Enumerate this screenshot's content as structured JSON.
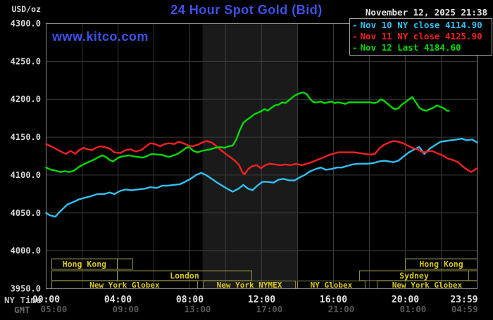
{
  "header": {
    "units_label": "USD/oz",
    "title": "24 Hour Spot Gold (Bid)",
    "datetime": "November 12, 2025 21:38",
    "watermark": "www.kitco.com",
    "legend": [
      {
        "label": "Nov 10 NY close 4114.90",
        "color": "#2fc0f2"
      },
      {
        "label": "Nov 11 NY close 4125.90",
        "color": "#f52020"
      },
      {
        "label": "Nov 12 Last 4184.60",
        "color": "#00dc00"
      }
    ]
  },
  "axes": {
    "ny_time_label": "NY Time",
    "gmt_label": "GMT",
    "ny_ticks": [
      "00:00",
      "04:00",
      "08:00",
      "12:00",
      "16:00",
      "20:00",
      "23:59"
    ],
    "gmt_ticks": [
      "05:00",
      "09:00",
      "13:00",
      "17:00",
      "21:00",
      "01:00",
      "04:59"
    ],
    "y_tick_values": [
      3950,
      4000,
      4050,
      4100,
      4150,
      4200,
      4250,
      4300
    ]
  },
  "chart_data": {
    "type": "line",
    "title": "24 Hour Spot Gold (Bid)",
    "x_unit": "hours, NY time",
    "xlim": [
      0,
      24
    ],
    "ylim": [
      3950,
      4300
    ],
    "grid": {
      "x_step_hours": 2,
      "y_step": 50,
      "color": "#3a3a3a"
    },
    "nymex_band": {
      "t0": 8.71,
      "t1": 14.0,
      "color": "#1a1a1a"
    },
    "series": [
      {
        "name": "Nov 10 NY close",
        "close_value": 4114.9,
        "color": "#2fc0f2",
        "points": [
          [
            0,
            4050
          ],
          [
            0.2,
            4047
          ],
          [
            0.51,
            4045
          ],
          [
            0.78,
            4052
          ],
          [
            1.18,
            4061
          ],
          [
            1.57,
            4065
          ],
          [
            1.84,
            4068
          ],
          [
            2.16,
            4070
          ],
          [
            2.47,
            4072
          ],
          [
            2.86,
            4075
          ],
          [
            3.25,
            4075
          ],
          [
            3.53,
            4077
          ],
          [
            3.8,
            4075
          ],
          [
            4.12,
            4079
          ],
          [
            4.43,
            4081
          ],
          [
            4.75,
            4080
          ],
          [
            5.1,
            4081
          ],
          [
            5.49,
            4082
          ],
          [
            5.8,
            4084
          ],
          [
            6.16,
            4083
          ],
          [
            6.47,
            4086
          ],
          [
            6.78,
            4086
          ],
          [
            7.1,
            4087
          ],
          [
            7.45,
            4088
          ],
          [
            7.73,
            4091
          ],
          [
            8.04,
            4095
          ],
          [
            8.35,
            4100
          ],
          [
            8.63,
            4103
          ],
          [
            8.9,
            4100
          ],
          [
            9.22,
            4095
          ],
          [
            9.53,
            4090
          ],
          [
            9.8,
            4086
          ],
          [
            10.08,
            4082
          ],
          [
            10.39,
            4078
          ],
          [
            10.71,
            4082
          ],
          [
            10.98,
            4087
          ],
          [
            11.25,
            4082
          ],
          [
            11.49,
            4080
          ],
          [
            11.76,
            4086
          ],
          [
            12.04,
            4091
          ],
          [
            12.35,
            4091
          ],
          [
            12.67,
            4090
          ],
          [
            12.94,
            4094
          ],
          [
            13.22,
            4095
          ],
          [
            13.53,
            4093
          ],
          [
            13.84,
            4093
          ],
          [
            14.12,
            4097
          ],
          [
            14.39,
            4100
          ],
          [
            14.71,
            4105
          ],
          [
            15.02,
            4108
          ],
          [
            15.29,
            4110
          ],
          [
            15.57,
            4107
          ],
          [
            15.88,
            4108
          ],
          [
            16.2,
            4110
          ],
          [
            16.47,
            4110
          ],
          [
            16.75,
            4112
          ],
          [
            17.06,
            4114
          ],
          [
            17.37,
            4115
          ],
          [
            17.65,
            4115
          ],
          [
            17.92,
            4115
          ],
          [
            18.24,
            4116
          ],
          [
            18.55,
            4118
          ],
          [
            18.82,
            4119
          ],
          [
            19.1,
            4118
          ],
          [
            19.33,
            4117
          ],
          [
            19.61,
            4119
          ],
          [
            19.88,
            4124
          ],
          [
            20.2,
            4130
          ],
          [
            20.51,
            4134
          ],
          [
            20.78,
            4137
          ],
          [
            21.06,
            4128
          ],
          [
            21.37,
            4135
          ],
          [
            21.69,
            4140
          ],
          [
            21.96,
            4144
          ],
          [
            22.24,
            4145
          ],
          [
            22.55,
            4146
          ],
          [
            22.86,
            4147
          ],
          [
            23.14,
            4148
          ],
          [
            23.41,
            4146
          ],
          [
            23.73,
            4147
          ],
          [
            24,
            4143
          ]
        ]
      },
      {
        "name": "Nov 11 NY close",
        "close_value": 4125.9,
        "color": "#f52020",
        "points": [
          [
            0,
            4141
          ],
          [
            0.27,
            4138
          ],
          [
            0.59,
            4134
          ],
          [
            0.9,
            4130
          ],
          [
            1.1,
            4128
          ],
          [
            1.37,
            4132
          ],
          [
            1.61,
            4128
          ],
          [
            1.84,
            4133
          ],
          [
            2.08,
            4136
          ],
          [
            2.31,
            4134
          ],
          [
            2.55,
            4133
          ],
          [
            2.78,
            4136
          ],
          [
            3.02,
            4138
          ],
          [
            3.25,
            4137
          ],
          [
            3.53,
            4135
          ],
          [
            3.8,
            4130
          ],
          [
            4.12,
            4129
          ],
          [
            4.43,
            4133
          ],
          [
            4.71,
            4134
          ],
          [
            4.98,
            4131
          ],
          [
            5.29,
            4133
          ],
          [
            5.57,
            4138
          ],
          [
            5.8,
            4142
          ],
          [
            6.08,
            4141
          ],
          [
            6.35,
            4138
          ],
          [
            6.59,
            4141
          ],
          [
            6.86,
            4142
          ],
          [
            7.14,
            4141
          ],
          [
            7.37,
            4144
          ],
          [
            7.65,
            4142
          ],
          [
            7.92,
            4139
          ],
          [
            8.16,
            4138
          ],
          [
            8.43,
            4140
          ],
          [
            8.71,
            4143
          ],
          [
            8.94,
            4145
          ],
          [
            9.22,
            4143
          ],
          [
            9.49,
            4138
          ],
          [
            9.73,
            4133
          ],
          [
            10,
            4128
          ],
          [
            10.24,
            4124
          ],
          [
            10.51,
            4119
          ],
          [
            10.75,
            4113
          ],
          [
            10.94,
            4103
          ],
          [
            11.06,
            4101
          ],
          [
            11.25,
            4108
          ],
          [
            11.49,
            4112
          ],
          [
            11.73,
            4113
          ],
          [
            11.96,
            4109
          ],
          [
            12.2,
            4113
          ],
          [
            12.43,
            4115
          ],
          [
            12.75,
            4114
          ],
          [
            13.06,
            4113
          ],
          [
            13.33,
            4114
          ],
          [
            13.61,
            4113
          ],
          [
            13.92,
            4115
          ],
          [
            14.24,
            4113
          ],
          [
            14.51,
            4115
          ],
          [
            14.78,
            4117
          ],
          [
            15.1,
            4120
          ],
          [
            15.41,
            4123
          ],
          [
            15.69,
            4126
          ],
          [
            15.96,
            4128
          ],
          [
            16.27,
            4130
          ],
          [
            16.59,
            4130
          ],
          [
            16.86,
            4130
          ],
          [
            17.14,
            4130
          ],
          [
            17.45,
            4129
          ],
          [
            17.76,
            4128
          ],
          [
            18.04,
            4127
          ],
          [
            18.31,
            4128
          ],
          [
            18.55,
            4135
          ],
          [
            18.82,
            4140
          ],
          [
            19.1,
            4143
          ],
          [
            19.33,
            4145
          ],
          [
            19.61,
            4144
          ],
          [
            19.88,
            4142
          ],
          [
            20.12,
            4139
          ],
          [
            20.39,
            4136
          ],
          [
            20.67,
            4134
          ],
          [
            20.98,
            4130
          ],
          [
            21.25,
            4131
          ],
          [
            21.49,
            4132
          ],
          [
            21.76,
            4129
          ],
          [
            22.08,
            4126
          ],
          [
            22.35,
            4122
          ],
          [
            22.63,
            4120
          ],
          [
            22.94,
            4117
          ],
          [
            23.22,
            4111
          ],
          [
            23.45,
            4107
          ],
          [
            23.65,
            4104
          ],
          [
            23.8,
            4106
          ],
          [
            24,
            4109
          ]
        ]
      },
      {
        "name": "Nov 12 Last",
        "close_value": 4184.6,
        "color": "#00dc00",
        "points": [
          [
            0,
            4110
          ],
          [
            0.27,
            4107
          ],
          [
            0.51,
            4106
          ],
          [
            0.78,
            4104
          ],
          [
            1.06,
            4105
          ],
          [
            1.29,
            4104
          ],
          [
            1.57,
            4106
          ],
          [
            1.84,
            4111
          ],
          [
            2.08,
            4114
          ],
          [
            2.35,
            4117
          ],
          [
            2.63,
            4120
          ],
          [
            2.86,
            4123
          ],
          [
            3.14,
            4126
          ],
          [
            3.33,
            4124
          ],
          [
            3.53,
            4120
          ],
          [
            3.73,
            4118
          ],
          [
            3.96,
            4122
          ],
          [
            4.12,
            4124
          ],
          [
            4.35,
            4125
          ],
          [
            4.59,
            4126
          ],
          [
            4.82,
            4125
          ],
          [
            5.1,
            4124
          ],
          [
            5.37,
            4123
          ],
          [
            5.61,
            4125
          ],
          [
            5.88,
            4128
          ],
          [
            6.16,
            4127
          ],
          [
            6.39,
            4127
          ],
          [
            6.67,
            4125
          ],
          [
            6.86,
            4124
          ],
          [
            7.1,
            4126
          ],
          [
            7.33,
            4128
          ],
          [
            7.57,
            4132
          ],
          [
            7.8,
            4136
          ],
          [
            7.96,
            4137
          ],
          [
            8.2,
            4132
          ],
          [
            8.43,
            4130
          ],
          [
            8.67,
            4132
          ],
          [
            8.9,
            4133
          ],
          [
            9.14,
            4134
          ],
          [
            9.41,
            4136
          ],
          [
            9.69,
            4137
          ],
          [
            9.92,
            4136
          ],
          [
            10.16,
            4138
          ],
          [
            10.39,
            4139
          ],
          [
            10.59,
            4147
          ],
          [
            10.78,
            4159
          ],
          [
            10.98,
            4169
          ],
          [
            11.18,
            4173
          ],
          [
            11.37,
            4176
          ],
          [
            11.57,
            4180
          ],
          [
            11.76,
            4182
          ],
          [
            11.96,
            4184
          ],
          [
            12.16,
            4187
          ],
          [
            12.35,
            4185
          ],
          [
            12.55,
            4189
          ],
          [
            12.75,
            4192
          ],
          [
            12.94,
            4193
          ],
          [
            13.14,
            4196
          ],
          [
            13.33,
            4195
          ],
          [
            13.53,
            4199
          ],
          [
            13.73,
            4203
          ],
          [
            13.92,
            4206
          ],
          [
            14.12,
            4208
          ],
          [
            14.31,
            4209
          ],
          [
            14.51,
            4207
          ],
          [
            14.71,
            4200
          ],
          [
            14.9,
            4196
          ],
          [
            15.1,
            4196
          ],
          [
            15.29,
            4197
          ],
          [
            15.49,
            4195
          ],
          [
            15.69,
            4196
          ],
          [
            15.88,
            4197
          ],
          [
            16.08,
            4195
          ],
          [
            16.27,
            4196
          ],
          [
            16.47,
            4195
          ],
          [
            16.67,
            4194
          ],
          [
            16.86,
            4196
          ],
          [
            17.06,
            4196
          ],
          [
            17.25,
            4196
          ],
          [
            17.45,
            4196
          ],
          [
            17.65,
            4196
          ],
          [
            17.84,
            4196
          ],
          [
            18.04,
            4196
          ],
          [
            18.24,
            4195
          ],
          [
            18.43,
            4196
          ],
          [
            18.63,
            4200
          ],
          [
            18.82,
            4198
          ],
          [
            19.02,
            4194
          ],
          [
            19.22,
            4190
          ],
          [
            19.41,
            4187
          ],
          [
            19.61,
            4188
          ],
          [
            19.8,
            4193
          ],
          [
            20,
            4196
          ],
          [
            20.2,
            4200
          ],
          [
            20.39,
            4203
          ],
          [
            20.59,
            4196
          ],
          [
            20.78,
            4189
          ],
          [
            20.98,
            4186
          ],
          [
            21.18,
            4185
          ],
          [
            21.37,
            4187
          ],
          [
            21.57,
            4189
          ],
          [
            21.76,
            4192
          ],
          [
            21.96,
            4190
          ],
          [
            22.16,
            4188
          ],
          [
            22.31,
            4185
          ],
          [
            22.43,
            4185
          ]
        ]
      }
    ],
    "sessions": [
      {
        "row": 0,
        "t0": 0.31,
        "t1": 3.96,
        "label": "Hong Kong"
      },
      {
        "row": 0,
        "t0": 3.96,
        "t1": 4.82,
        "label": ""
      },
      {
        "row": 0,
        "t0": 20.0,
        "t1": 24.0,
        "label": "Hong Kong"
      },
      {
        "row": 1,
        "t0": 0.31,
        "t1": 3.96,
        "label": ""
      },
      {
        "row": 1,
        "t0": 3.96,
        "t1": 11.45,
        "label": "London"
      },
      {
        "row": 1,
        "t0": 17.45,
        "t1": 23.53,
        "label": "Sydney"
      },
      {
        "row": 1,
        "t0": 23.53,
        "t1": 24.0,
        "label": ""
      },
      {
        "row": 2,
        "t0": 0.31,
        "t1": 8.43,
        "label": "New York Globex"
      },
      {
        "row": 2,
        "t0": 8.75,
        "t1": 13.88,
        "label": "New York NYMEX"
      },
      {
        "row": 2,
        "t0": 14.0,
        "t1": 17.76,
        "label": "NY Globex"
      },
      {
        "row": 2,
        "t0": 18.43,
        "t1": 24.0,
        "label": "New York Globex"
      }
    ],
    "session_style": {
      "border_color": "#8f8f46",
      "text_color": "#d8c61e"
    }
  }
}
